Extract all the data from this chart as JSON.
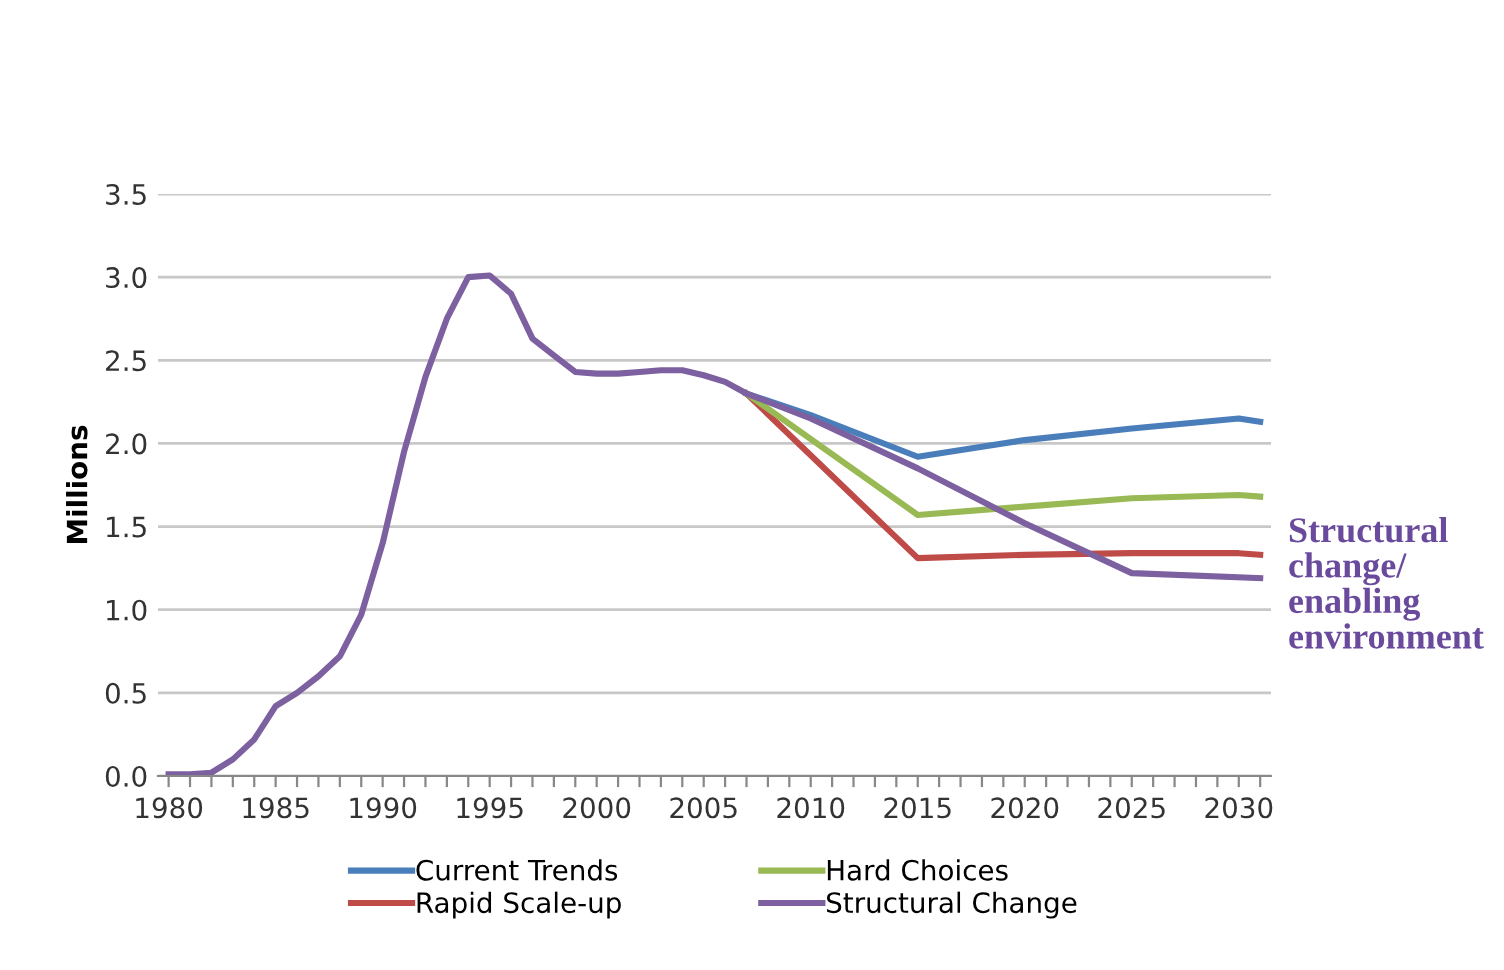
{
  "chart_data": {
    "type": "line",
    "ylabel": "Millions",
    "xlim": [
      1979.5,
      2031.5
    ],
    "ylim": [
      0,
      3.5
    ],
    "yticks": [
      {
        "value": 0,
        "label": "0.0"
      },
      {
        "value": 0.5,
        "label": "0.5"
      },
      {
        "value": 1,
        "label": "1.0"
      },
      {
        "value": 1.5,
        "label": "1.5"
      },
      {
        "value": 2,
        "label": "2.0"
      },
      {
        "value": 2.5,
        "label": "2.5"
      },
      {
        "value": 3,
        "label": "3.0"
      },
      {
        "value": 3.5,
        "label": "3.5"
      }
    ],
    "xticks": [
      1980,
      {
        "value": 1981,
        "label": null
      },
      {
        "value": 1982,
        "label": null
      },
      {
        "value": 1983,
        "label": null
      },
      {
        "value": 1984,
        "label": null
      },
      1985,
      {
        "value": 1986,
        "label": null
      },
      {
        "value": 1987,
        "label": null
      },
      {
        "value": 1988,
        "label": null
      },
      {
        "value": 1989,
        "label": null
      },
      1990,
      {
        "value": 1991,
        "label": null
      },
      {
        "value": 1992,
        "label": null
      },
      {
        "value": 1993,
        "label": null
      },
      {
        "value": 1994,
        "label": null
      },
      1995,
      {
        "value": 1996,
        "label": null
      },
      {
        "value": 1997,
        "label": null
      },
      {
        "value": 1998,
        "label": null
      },
      {
        "value": 1999,
        "label": null
      },
      2000,
      {
        "value": 2001,
        "label": null
      },
      {
        "value": 2002,
        "label": null
      },
      {
        "value": 2003,
        "label": null
      },
      {
        "value": 2004,
        "label": null
      },
      2005,
      {
        "value": 2006,
        "label": null
      },
      {
        "value": 2007,
        "label": null
      },
      {
        "value": 2008,
        "label": null
      },
      {
        "value": 2009,
        "label": null
      },
      2010,
      {
        "value": 2011,
        "label": null
      },
      {
        "value": 2012,
        "label": null
      },
      {
        "value": 2013,
        "label": null
      },
      {
        "value": 2014,
        "label": null
      },
      2015,
      {
        "value": 2016,
        "label": null
      },
      {
        "value": 2017,
        "label": null
      },
      {
        "value": 2018,
        "label": null
      },
      {
        "value": 2019,
        "label": null
      },
      2020,
      {
        "value": 2021,
        "label": null
      },
      {
        "value": 2022,
        "label": null
      },
      {
        "value": 2023,
        "label": null
      },
      {
        "value": 2024,
        "label": null
      },
      2025,
      {
        "value": 2026,
        "label": null
      },
      {
        "value": 2027,
        "label": null
      },
      {
        "value": 2028,
        "label": null
      },
      {
        "value": 2029,
        "label": null
      },
      2030,
      {
        "value": 2031,
        "label": null
      }
    ],
    "grid": "y",
    "legend": "bottom",
    "marker": "none",
    "line_style": "solid",
    "series": [
      {
        "name": "Current Trends",
        "color": "#4a7ebb",
        "x": [
          2007,
          2010,
          2015,
          2020,
          2025,
          2030,
          2031
        ],
        "values": [
          2.3,
          2.17,
          1.92,
          2.02,
          2.09,
          2.15,
          2.13
        ]
      },
      {
        "name": "Rapid Scale-up",
        "color": "#be4b48",
        "x": [
          2007,
          2015,
          2020,
          2025,
          2030,
          2031
        ],
        "values": [
          2.3,
          1.31,
          1.33,
          1.34,
          1.34,
          1.33
        ]
      },
      {
        "name": "Hard Choices",
        "color": "#98b954",
        "x": [
          2007,
          2015,
          2020,
          2025,
          2030,
          2031
        ],
        "values": [
          2.3,
          1.57,
          1.62,
          1.67,
          1.69,
          1.68
        ]
      },
      {
        "name": "Structural Change",
        "color": "#7d60a0",
        "x": [
          1980,
          1981,
          1982,
          1983,
          1984,
          1985,
          1986,
          1987,
          1988,
          1989,
          1990,
          1991,
          1992,
          1993,
          1994,
          1995,
          1996,
          1997,
          1998,
          1999,
          2000,
          2001,
          2002,
          2003,
          2004,
          2005,
          2006,
          2007,
          2010,
          2015,
          2020,
          2025,
          2031
        ],
        "values": [
          0.01,
          0.01,
          0.02,
          0.1,
          0.22,
          0.42,
          0.5,
          0.6,
          0.72,
          0.97,
          1.4,
          1.95,
          2.4,
          2.75,
          3.0,
          3.01,
          2.9,
          2.63,
          2.53,
          2.43,
          2.42,
          2.42,
          2.43,
          2.44,
          2.44,
          2.41,
          2.37,
          2.3,
          2.15,
          1.85,
          1.52,
          1.22,
          1.19
        ]
      }
    ],
    "annotations": [
      {
        "text": "Structural\nchange/\nenabling\nenvironment",
        "x": 2031,
        "y": 1.19
      }
    ]
  }
}
